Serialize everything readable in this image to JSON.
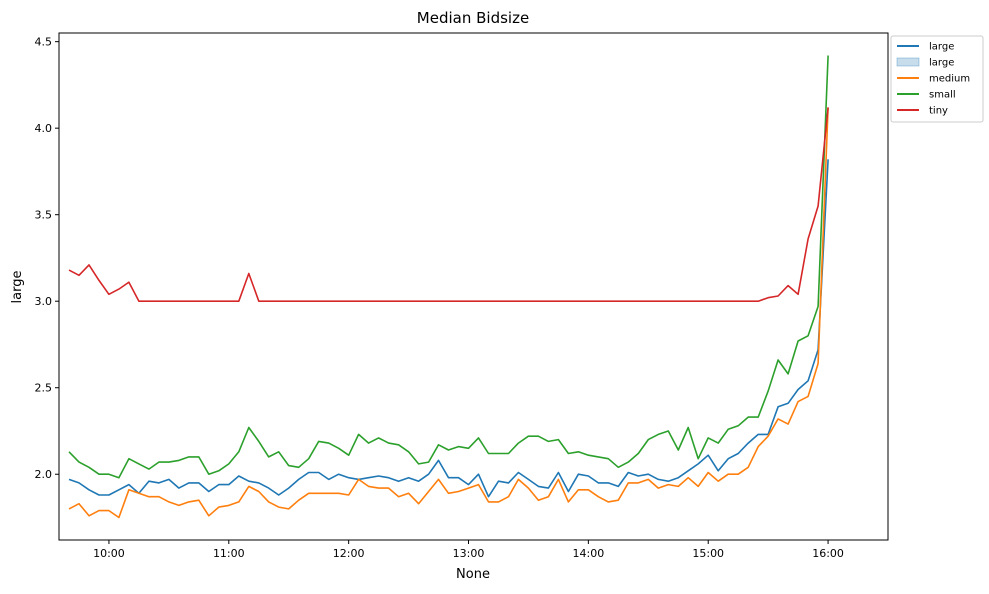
{
  "chart_data": {
    "type": "line",
    "title": "Median Bidsize",
    "xlabel": "None",
    "ylabel": "large",
    "x_axis": {
      "type": "time",
      "ticks": [
        "10:00",
        "11:00",
        "12:00",
        "13:00",
        "14:00",
        "15:00",
        "16:00"
      ],
      "range": [
        "09:35",
        "16:30"
      ]
    },
    "y_axis": {
      "ticks": [
        "2.0",
        "2.5",
        "3.0",
        "3.5",
        "4.0",
        "4.5"
      ],
      "range": [
        1.62,
        4.55
      ]
    },
    "grid": false,
    "legend": {
      "placement": "outside-top-right",
      "entries": [
        {
          "label": "large",
          "kind": "line",
          "color": "#1f77b4"
        },
        {
          "label": "large",
          "kind": "band",
          "color": "#1f77b4"
        },
        {
          "label": "medium",
          "kind": "line",
          "color": "#ff7f0e"
        },
        {
          "label": "small",
          "kind": "line",
          "color": "#2ca02c"
        },
        {
          "label": "tiny",
          "kind": "line",
          "color": "#d62728"
        }
      ]
    },
    "x": [
      "09:40",
      "09:45",
      "09:50",
      "09:55",
      "10:00",
      "10:05",
      "10:10",
      "10:15",
      "10:20",
      "10:25",
      "10:30",
      "10:35",
      "10:40",
      "10:45",
      "10:50",
      "10:55",
      "11:00",
      "11:05",
      "11:10",
      "11:15",
      "11:20",
      "11:25",
      "11:30",
      "11:35",
      "11:40",
      "11:45",
      "11:50",
      "11:55",
      "12:00",
      "12:05",
      "12:10",
      "12:15",
      "12:20",
      "12:25",
      "12:30",
      "12:35",
      "12:40",
      "12:45",
      "12:50",
      "12:55",
      "13:00",
      "13:05",
      "13:10",
      "13:15",
      "13:20",
      "13:25",
      "13:30",
      "13:35",
      "13:40",
      "13:45",
      "13:50",
      "13:55",
      "14:00",
      "14:05",
      "14:10",
      "14:15",
      "14:20",
      "14:25",
      "14:30",
      "14:35",
      "14:40",
      "14:45",
      "14:50",
      "14:55",
      "15:00",
      "15:05",
      "15:10",
      "15:15",
      "15:20",
      "15:25",
      "15:30",
      "15:35",
      "15:40",
      "15:45",
      "15:50",
      "15:55",
      "16:00"
    ],
    "series": [
      {
        "name": "large",
        "color": "#1f77b4",
        "values": [
          1.97,
          1.95,
          1.91,
          1.88,
          1.88,
          1.91,
          1.94,
          1.89,
          1.96,
          1.95,
          1.97,
          1.92,
          1.95,
          1.95,
          1.9,
          1.94,
          1.94,
          1.99,
          1.96,
          1.95,
          1.92,
          1.88,
          1.92,
          1.97,
          2.01,
          2.01,
          1.97,
          2.0,
          1.98,
          1.97,
          1.98,
          1.99,
          1.98,
          1.96,
          1.98,
          1.96,
          2.0,
          2.08,
          1.98,
          1.98,
          1.94,
          2.0,
          1.87,
          1.96,
          1.95,
          2.01,
          1.97,
          1.93,
          1.92,
          2.01,
          1.9,
          2.0,
          1.99,
          1.95,
          1.95,
          1.93,
          2.01,
          1.99,
          2.0,
          1.97,
          1.96,
          1.98,
          2.02,
          2.06,
          2.11,
          2.02,
          2.09,
          2.12,
          2.18,
          2.23,
          2.23,
          2.39,
          2.41,
          2.49,
          2.54,
          2.72,
          3.82
        ]
      },
      {
        "name": "medium",
        "color": "#ff7f0e",
        "values": [
          1.8,
          1.83,
          1.76,
          1.79,
          1.79,
          1.75,
          1.91,
          1.89,
          1.87,
          1.87,
          1.84,
          1.82,
          1.84,
          1.85,
          1.76,
          1.81,
          1.82,
          1.84,
          1.93,
          1.9,
          1.84,
          1.81,
          1.8,
          1.85,
          1.89,
          1.89,
          1.89,
          1.89,
          1.88,
          1.97,
          1.93,
          1.92,
          1.92,
          1.87,
          1.89,
          1.83,
          1.9,
          1.97,
          1.89,
          1.9,
          1.92,
          1.94,
          1.84,
          1.84,
          1.87,
          1.97,
          1.92,
          1.85,
          1.87,
          1.97,
          1.84,
          1.91,
          1.91,
          1.87,
          1.84,
          1.85,
          1.95,
          1.95,
          1.97,
          1.92,
          1.94,
          1.93,
          1.98,
          1.93,
          2.01,
          1.96,
          2.0,
          2.0,
          2.04,
          2.16,
          2.22,
          2.32,
          2.29,
          2.42,
          2.45,
          2.64,
          4.12
        ]
      },
      {
        "name": "small",
        "color": "#2ca02c",
        "values": [
          2.13,
          2.07,
          2.04,
          2.0,
          2.0,
          1.98,
          2.09,
          2.06,
          2.03,
          2.07,
          2.07,
          2.08,
          2.1,
          2.1,
          2.0,
          2.02,
          2.06,
          2.13,
          2.27,
          2.19,
          2.1,
          2.13,
          2.05,
          2.04,
          2.09,
          2.19,
          2.18,
          2.15,
          2.11,
          2.23,
          2.18,
          2.21,
          2.18,
          2.17,
          2.13,
          2.06,
          2.07,
          2.17,
          2.14,
          2.16,
          2.15,
          2.21,
          2.12,
          2.12,
          2.12,
          2.18,
          2.22,
          2.22,
          2.19,
          2.2,
          2.12,
          2.13,
          2.11,
          2.1,
          2.09,
          2.04,
          2.07,
          2.12,
          2.2,
          2.23,
          2.25,
          2.14,
          2.27,
          2.09,
          2.21,
          2.18,
          2.26,
          2.28,
          2.33,
          2.33,
          2.48,
          2.66,
          2.58,
          2.77,
          2.8,
          2.97,
          4.42
        ]
      },
      {
        "name": "tiny",
        "color": "#d62728",
        "values": [
          3.18,
          3.15,
          3.21,
          3.12,
          3.04,
          3.07,
          3.11,
          3.0,
          3.0,
          3.0,
          3.0,
          3.0,
          3.0,
          3.0,
          3.0,
          3.0,
          3.0,
          3.0,
          3.16,
          3.0,
          3.0,
          3.0,
          3.0,
          3.0,
          3.0,
          3.0,
          3.0,
          3.0,
          3.0,
          3.0,
          3.0,
          3.0,
          3.0,
          3.0,
          3.0,
          3.0,
          3.0,
          3.0,
          3.0,
          3.0,
          3.0,
          3.0,
          3.0,
          3.0,
          3.0,
          3.0,
          3.0,
          3.0,
          3.0,
          3.0,
          3.0,
          3.0,
          3.0,
          3.0,
          3.0,
          3.0,
          3.0,
          3.0,
          3.0,
          3.0,
          3.0,
          3.0,
          3.0,
          3.0,
          3.0,
          3.0,
          3.0,
          3.0,
          3.0,
          3.0,
          3.02,
          3.03,
          3.09,
          3.04,
          3.36,
          3.55,
          4.12
        ]
      }
    ]
  }
}
